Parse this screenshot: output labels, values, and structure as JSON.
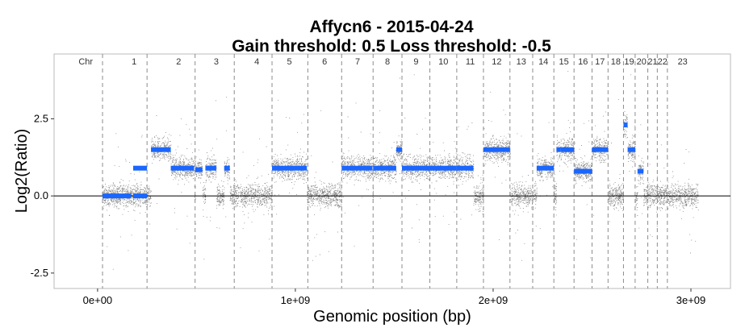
{
  "chart_data": {
    "type": "scatter",
    "title": "Affycn6 - 2015-04-24",
    "subtitle": "Gain threshold:  0.5  Loss threshold: -0.5",
    "xlabel": "Genomic position (bp)",
    "ylabel": "Log2(Ratio)",
    "xlim": [
      -220000000,
      3200000000
    ],
    "ylim": [
      -3.0,
      4.6
    ],
    "x_ticks": [
      {
        "value": 0,
        "label": "0e+00"
      },
      {
        "value": 1000000000,
        "label": "1e+09"
      },
      {
        "value": 2000000000,
        "label": "2e+09"
      },
      {
        "value": 3000000000,
        "label": "3e+09"
      }
    ],
    "y_ticks": [
      {
        "value": -2.5,
        "label": "-2.5"
      },
      {
        "value": 0.0,
        "label": "0.0"
      },
      {
        "value": 2.5,
        "label": "2.5"
      }
    ],
    "reference_line": 0,
    "chromosome_header": "Chr",
    "chromosomes": [
      {
        "label": "1",
        "start": 25000000,
        "end": 250000000,
        "level": 0.0,
        "segments": [
          {
            "x0": 25000000,
            "x1": 170000000,
            "value": 0.0
          },
          {
            "x0": 180000000,
            "x1": 250000000,
            "value": 0.0
          }
        ]
      },
      {
        "label": "1",
        "start": 25000000,
        "end": 250000000,
        "level": 0.9,
        "segments": [
          {
            "x0": 180000000,
            "x1": 250000000,
            "value": 0.9
          }
        ]
      },
      {
        "label": "2",
        "start": 250000000,
        "end": 493000000,
        "level": 1.5,
        "segments": [
          {
            "x0": 270000000,
            "x1": 370000000,
            "value": 1.5
          },
          {
            "x0": 370000000,
            "x1": 488000000,
            "value": 0.9
          }
        ]
      },
      {
        "label": "3",
        "start": 493000000,
        "end": 691000000,
        "level": 0.9,
        "segments": [
          {
            "x0": 493000000,
            "x1": 530000000,
            "value": 0.85
          },
          {
            "x0": 545000000,
            "x1": 600000000,
            "value": 0.9
          },
          {
            "x0": 640000000,
            "x1": 668000000,
            "value": 0.9
          }
        ]
      },
      {
        "label": "4",
        "start": 691000000,
        "end": 882000000,
        "level": 0.0,
        "segments": []
      },
      {
        "label": "5",
        "start": 882000000,
        "end": 1063000000,
        "level": 0.9,
        "segments": [
          {
            "x0": 882000000,
            "x1": 1058000000,
            "value": 0.9
          }
        ]
      },
      {
        "label": "6",
        "start": 1063000000,
        "end": 1234000000,
        "level": 0.0,
        "segments": []
      },
      {
        "label": "7",
        "start": 1234000000,
        "end": 1393000000,
        "level": 0.9,
        "segments": [
          {
            "x0": 1234000000,
            "x1": 1390000000,
            "value": 0.9
          }
        ]
      },
      {
        "label": "8",
        "start": 1393000000,
        "end": 1539000000,
        "level": 0.9,
        "segments": [
          {
            "x0": 1393000000,
            "x1": 1510000000,
            "value": 0.9
          },
          {
            "x0": 1510000000,
            "x1": 1539000000,
            "value": 1.5
          }
        ]
      },
      {
        "label": "9",
        "start": 1539000000,
        "end": 1680000000,
        "level": 0.9,
        "segments": [
          {
            "x0": 1539000000,
            "x1": 1680000000,
            "value": 0.9
          }
        ]
      },
      {
        "label": "10",
        "start": 1680000000,
        "end": 1816000000,
        "level": 0.9,
        "segments": [
          {
            "x0": 1680000000,
            "x1": 1816000000,
            "value": 0.9
          }
        ]
      },
      {
        "label": "11",
        "start": 1816000000,
        "end": 1951000000,
        "level": 0.9,
        "segments": [
          {
            "x0": 1816000000,
            "x1": 1900000000,
            "value": 0.9
          }
        ]
      },
      {
        "label": "12",
        "start": 1951000000,
        "end": 2085000000,
        "level": 1.5,
        "segments": [
          {
            "x0": 1951000000,
            "x1": 2085000000,
            "value": 1.5
          }
        ]
      },
      {
        "label": "13",
        "start": 2085000000,
        "end": 2200000000,
        "level": 0.0,
        "segments": []
      },
      {
        "label": "14",
        "start": 2200000000,
        "end": 2307000000,
        "level": 0.9,
        "segments": [
          {
            "x0": 2220000000,
            "x1": 2307000000,
            "value": 0.9
          }
        ]
      },
      {
        "label": "15",
        "start": 2307000000,
        "end": 2409000000,
        "level": 1.5,
        "segments": [
          {
            "x0": 2320000000,
            "x1": 2340000000,
            "value": 1.5
          },
          {
            "x0": 2340000000,
            "x1": 2409000000,
            "value": 1.5
          }
        ]
      },
      {
        "label": "16",
        "start": 2409000000,
        "end": 2500000000,
        "level": 0.8,
        "segments": [
          {
            "x0": 2409000000,
            "x1": 2500000000,
            "value": 0.8
          }
        ]
      },
      {
        "label": "17",
        "start": 2500000000,
        "end": 2581000000,
        "level": 1.5,
        "segments": [
          {
            "x0": 2500000000,
            "x1": 2581000000,
            "value": 1.5
          }
        ]
      },
      {
        "label": "18",
        "start": 2581000000,
        "end": 2659000000,
        "level": 0.0,
        "segments": []
      },
      {
        "label": "19",
        "start": 2659000000,
        "end": 2718000000,
        "level": 1.5,
        "segments": [
          {
            "x0": 2659000000,
            "x1": 2680000000,
            "value": 2.3
          },
          {
            "x0": 2680000000,
            "x1": 2718000000,
            "value": 1.5
          }
        ]
      },
      {
        "label": "20",
        "start": 2718000000,
        "end": 2782000000,
        "level": 0.8,
        "segments": [
          {
            "x0": 2730000000,
            "x1": 2760000000,
            "value": 0.8
          }
        ]
      },
      {
        "label": "21",
        "start": 2782000000,
        "end": 2830000000,
        "level": 0.0,
        "segments": []
      },
      {
        "label": "22",
        "start": 2830000000,
        "end": 2881000000,
        "level": 0.0,
        "segments": []
      },
      {
        "label": "23",
        "start": 2881000000,
        "end": 3036000000,
        "level": 0.0,
        "segments": []
      }
    ],
    "boundaries": [
      25000000,
      250000000,
      493000000,
      691000000,
      882000000,
      1063000000,
      1234000000,
      1393000000,
      1539000000,
      1680000000,
      1816000000,
      1951000000,
      2085000000,
      2200000000,
      2307000000,
      2409000000,
      2500000000,
      2581000000,
      2659000000,
      2718000000,
      2782000000,
      2830000000,
      2881000000
    ],
    "chr_labels": [
      {
        "label": "Chr",
        "x": -60000000
      },
      {
        "label": "1",
        "x": 185000000
      },
      {
        "label": "2",
        "x": 410000000
      },
      {
        "label": "3",
        "x": 600000000
      },
      {
        "label": "4",
        "x": 805000000
      },
      {
        "label": "5",
        "x": 970000000
      },
      {
        "label": "6",
        "x": 1148000000
      },
      {
        "label": "7",
        "x": 1315000000
      },
      {
        "label": "8",
        "x": 1466000000
      },
      {
        "label": "9",
        "x": 1610000000
      },
      {
        "label": "10",
        "x": 1748000000
      },
      {
        "label": "11",
        "x": 1884000000
      },
      {
        "label": "12",
        "x": 2018000000
      },
      {
        "label": "13",
        "x": 2142000000
      },
      {
        "label": "14",
        "x": 2254000000
      },
      {
        "label": "15",
        "x": 2358000000
      },
      {
        "label": "16",
        "x": 2454000000
      },
      {
        "label": "17",
        "x": 2540000000
      },
      {
        "label": "18",
        "x": 2620000000
      },
      {
        "label": "19",
        "x": 2688000000
      },
      {
        "label": "20",
        "x": 2750000000
      },
      {
        "label": "21",
        "x": 2806000000
      },
      {
        "label": "22",
        "x": 2856000000
      },
      {
        "label": "23",
        "x": 2958000000
      }
    ],
    "colors": {
      "points": "#555555",
      "segments": "#1a66ff",
      "boundary": "#8c8c8c",
      "zero_line": "#000000"
    },
    "grid": false,
    "legend": "none"
  }
}
